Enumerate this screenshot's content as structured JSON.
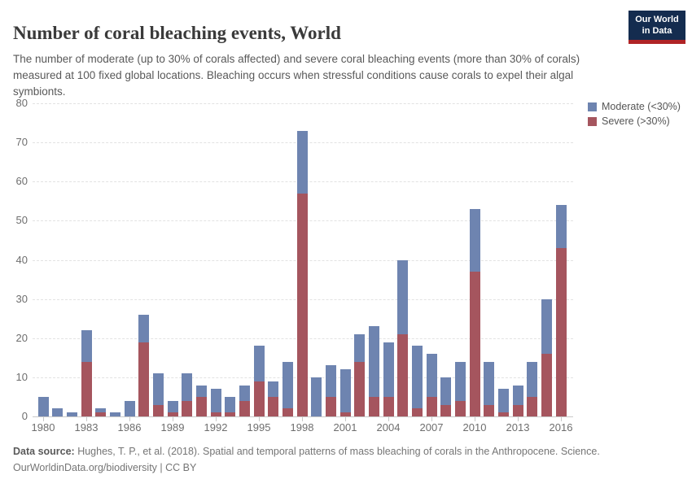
{
  "header": {
    "title": "Number of coral bleaching events, World",
    "subtitle": "The number of moderate (up to 30% of corals affected) and severe coral bleaching events (more than 30% of corals) measured at 100 fixed global locations. Bleaching occurs when stressful conditions cause corals to expel their algal symbionts.",
    "logo": {
      "line1": "Our World",
      "line2": "in Data"
    }
  },
  "legend": [
    {
      "label": "Moderate (<30%)",
      "color": "#6e84b0"
    },
    {
      "label": "Severe (>30%)",
      "color": "#a5555e"
    }
  ],
  "chart_data": {
    "type": "bar",
    "stacked": true,
    "title": "Number of coral bleaching events, World",
    "xlabel": "",
    "ylabel": "",
    "ylim": [
      0,
      80
    ],
    "ytick_step": 10,
    "grid": "horizontal-dashed",
    "legend_position": "top-right",
    "x": [
      1980,
      1981,
      1982,
      1983,
      1984,
      1985,
      1986,
      1987,
      1988,
      1989,
      1990,
      1991,
      1992,
      1993,
      1994,
      1995,
      1996,
      1997,
      1998,
      1999,
      2000,
      2001,
      2002,
      2003,
      2004,
      2005,
      2006,
      2007,
      2008,
      2009,
      2010,
      2011,
      2012,
      2013,
      2014,
      2015,
      2016
    ],
    "xtick_labels": [
      "1980",
      "1983",
      "1986",
      "1989",
      "1992",
      "1995",
      "1998",
      "2001",
      "2004",
      "2007",
      "2010",
      "2013",
      "2016"
    ],
    "series": [
      {
        "name": "Severe (>30%)",
        "color": "#a5555e",
        "values": [
          0,
          0,
          0,
          14,
          1,
          0,
          0,
          19,
          3,
          1,
          4,
          5,
          1,
          1,
          4,
          9,
          5,
          2,
          57,
          0,
          5,
          1,
          14,
          5,
          5,
          21,
          2,
          5,
          3,
          4,
          37,
          3,
          1,
          3,
          5,
          16,
          43
        ]
      },
      {
        "name": "Moderate (<30%)",
        "color": "#6e84b0",
        "values": [
          5,
          2,
          1,
          8,
          1,
          1,
          4,
          7,
          8,
          3,
          7,
          3,
          6,
          4,
          4,
          9,
          4,
          12,
          16,
          10,
          8,
          11,
          7,
          18,
          14,
          19,
          16,
          11,
          7,
          10,
          16,
          11,
          6,
          5,
          9,
          14,
          11
        ]
      }
    ],
    "totals": [
      5,
      2,
      1,
      22,
      2,
      1,
      4,
      26,
      11,
      4,
      11,
      8,
      7,
      5,
      8,
      18,
      9,
      14,
      73,
      10,
      13,
      12,
      21,
      23,
      19,
      40,
      18,
      16,
      10,
      14,
      53,
      14,
      7,
      8,
      14,
      30,
      54
    ]
  },
  "footer": {
    "source_label": "Data source:",
    "source_text": " Hughes, T. P., et al. (2018). Spatial and temporal patterns of mass bleaching of corals in the Anthropocene. Science.",
    "link_text": "OurWorldinData.org/biodiversity | CC BY"
  }
}
